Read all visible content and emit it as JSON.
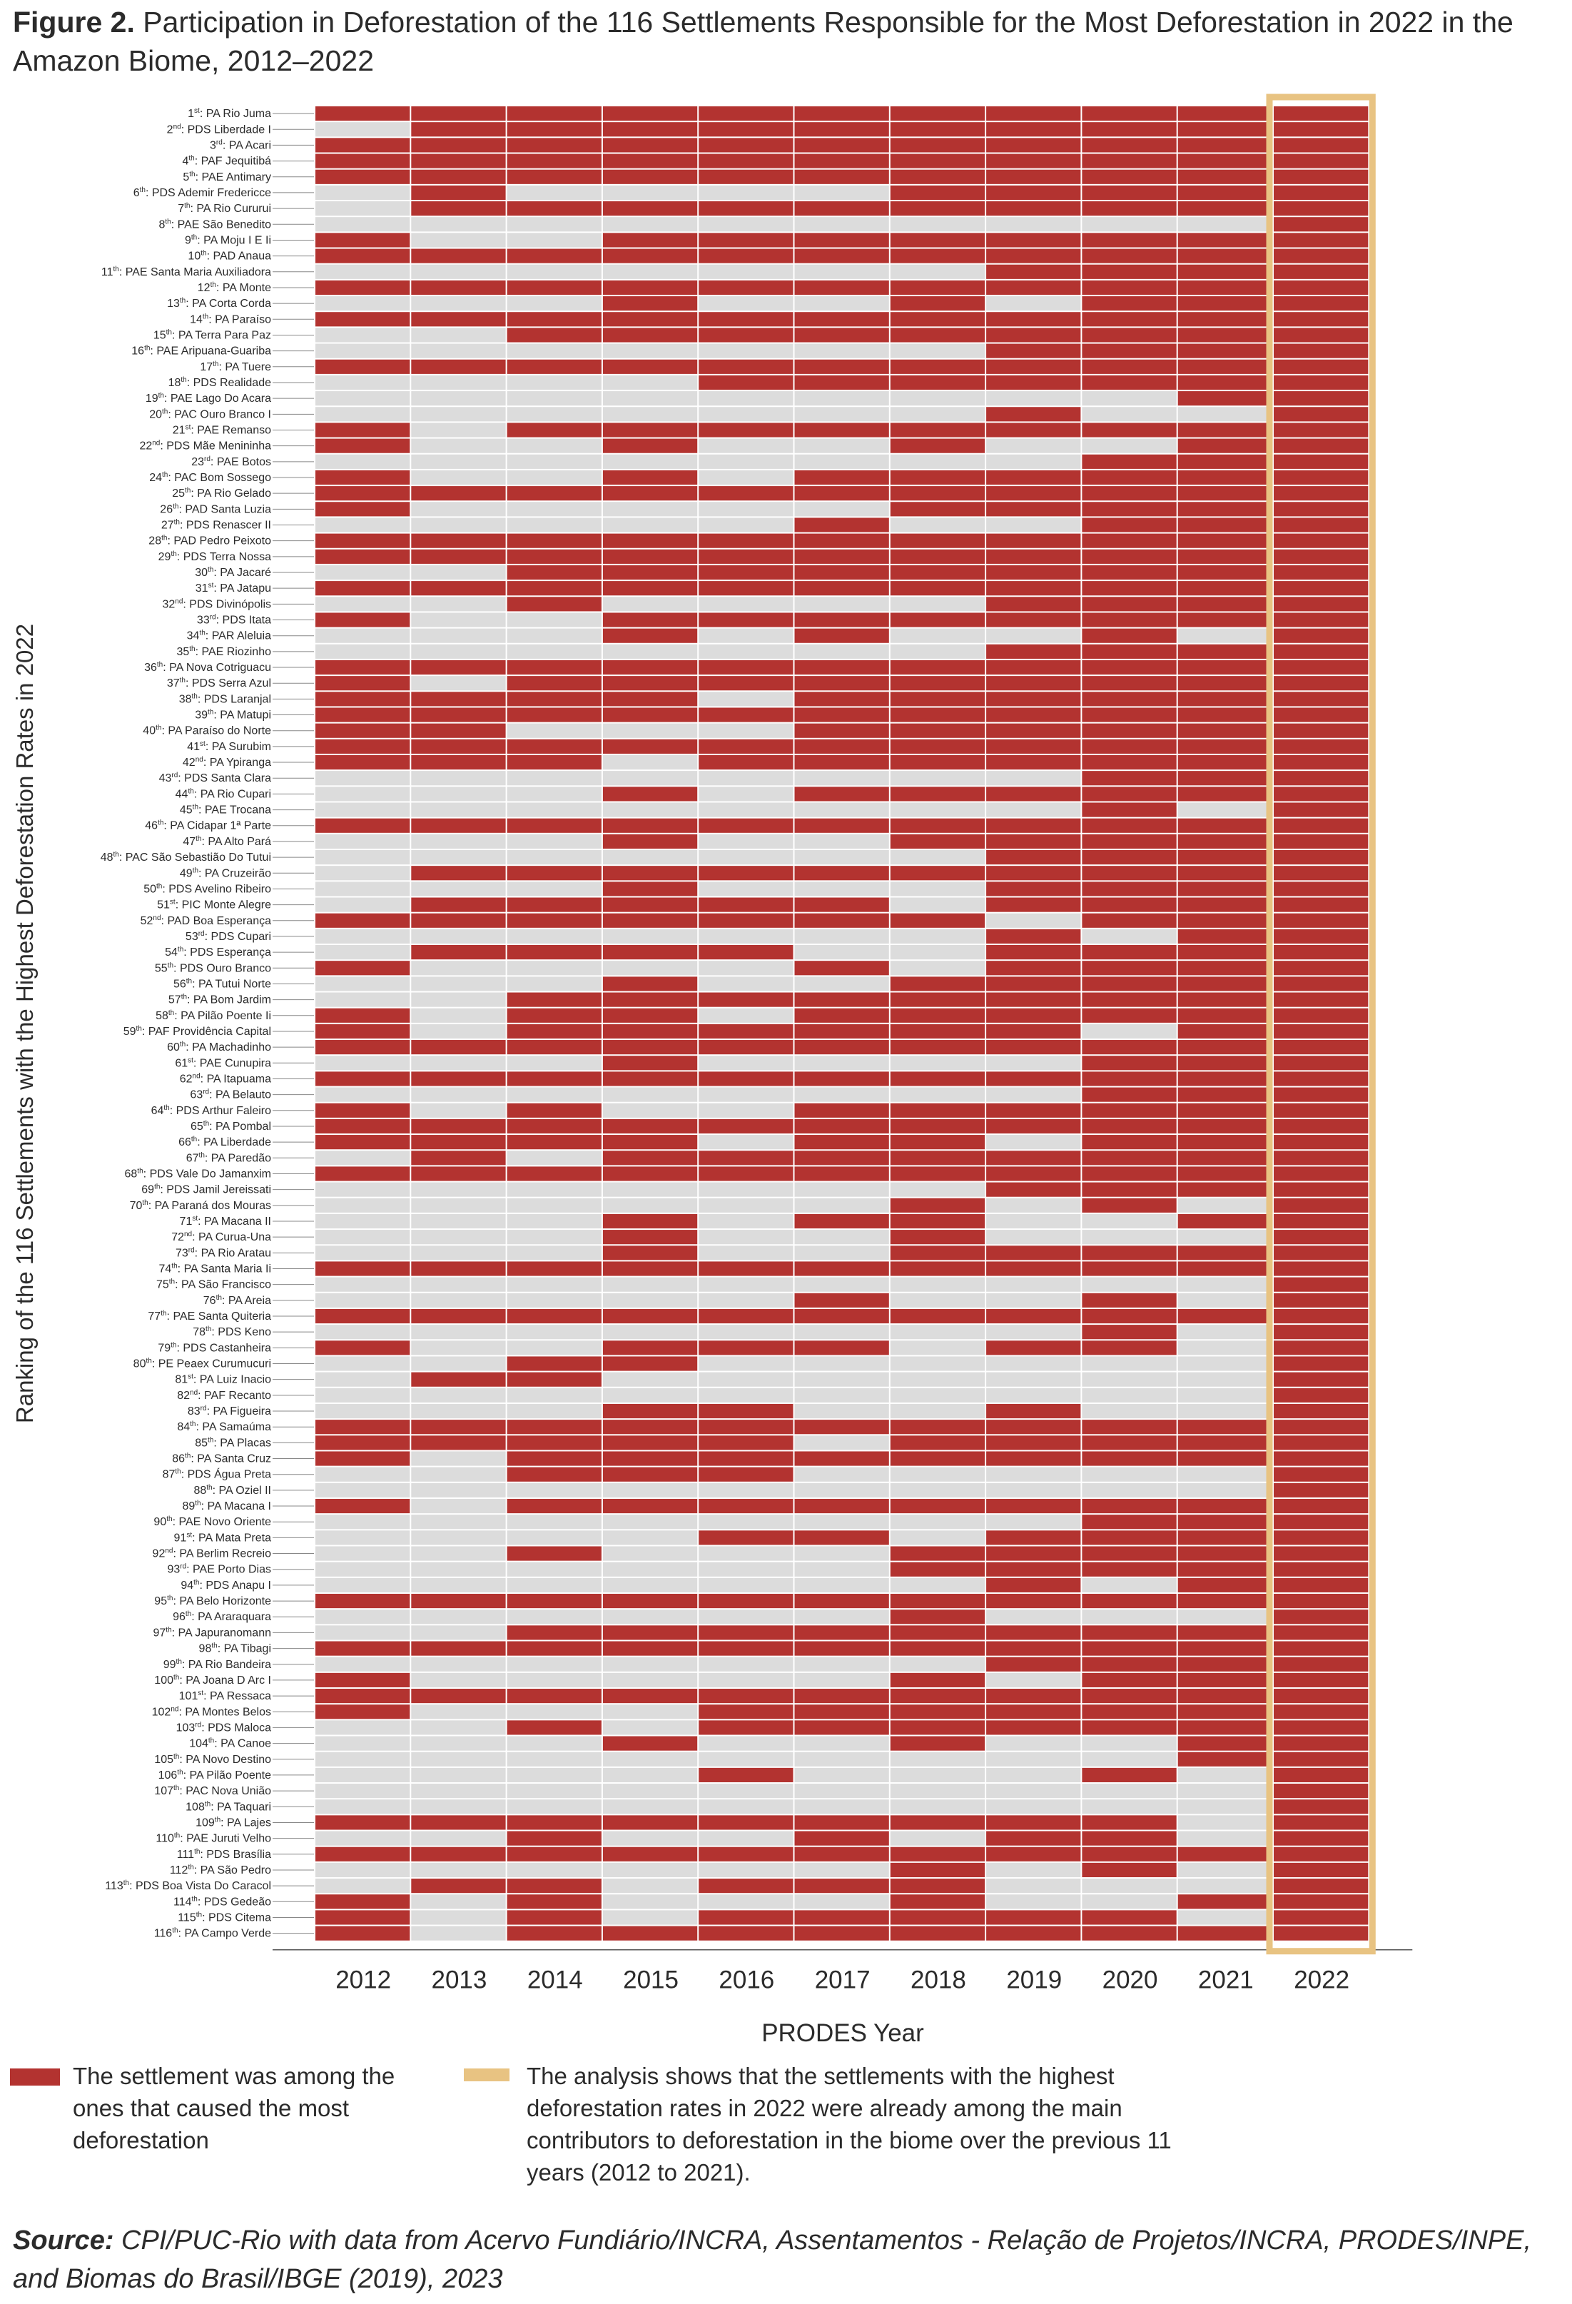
{
  "figure": {
    "title_bold": "Figure 2.",
    "title_text": "Participation in Deforestation of the 116 Settlements Responsible for the Most Deforestation in 2022 in the Amazon Biome, 2012–2022"
  },
  "legend": {
    "red_text": "The settlement was among the ones that caused the most deforestation",
    "highlight_text": "The analysis shows that the settlements with the highest deforestation rates in 2022 were already among the main contributors to deforestation in the biome over the previous 11 years (2012 to 2021)."
  },
  "source": {
    "label": "Source:",
    "text": "CPI/PUC-Rio with data from Acervo Fundiário/INCRA, Assentamentos - Relação de Projetos/INCRA, PRODES/INPE, and Biomas do Brasil/IBGE (2019), 2023"
  },
  "colors": {
    "red": "#b33330",
    "gray": "#dcdcdc",
    "highlight": "#e8c382",
    "text": "#2b2b2b"
  },
  "chart_data": {
    "type": "heatmap",
    "xlabel": "PRODES Year",
    "ylabel": "Ranking of the 116 Settlements with the Highest Deforestation Rates in 2022",
    "x": [
      "2012",
      "2013",
      "2014",
      "2015",
      "2016",
      "2017",
      "2018",
      "2019",
      "2020",
      "2021",
      "2022"
    ],
    "highlighted_year": "2022",
    "rows": [
      {
        "rank": "1",
        "suffix": "st",
        "name": "PA Rio Juma",
        "cells": "11111111111"
      },
      {
        "rank": "2",
        "suffix": "nd",
        "name": "PDS Liberdade I",
        "cells": "01111111111"
      },
      {
        "rank": "3",
        "suffix": "rd",
        "name": "PA Acari",
        "cells": "11111111111"
      },
      {
        "rank": "4",
        "suffix": "th",
        "name": "PAF Jequitibá",
        "cells": "11111111111"
      },
      {
        "rank": "5",
        "suffix": "th",
        "name": "PAE Antimary",
        "cells": "11111111111"
      },
      {
        "rank": "6",
        "suffix": "th",
        "name": "PDS Ademir Fredericce",
        "cells": "01000011111"
      },
      {
        "rank": "7",
        "suffix": "th",
        "name": "PA Rio Cururui",
        "cells": "01111111111"
      },
      {
        "rank": "8",
        "suffix": "th",
        "name": "PAE São Benedito",
        "cells": "00000000001"
      },
      {
        "rank": "9",
        "suffix": "th",
        "name": "PA Moju I E Ii",
        "cells": "10011111111"
      },
      {
        "rank": "10",
        "suffix": "th",
        "name": "PAD Anaua",
        "cells": "11111111111"
      },
      {
        "rank": "11",
        "suffix": "th",
        "name": "PAE Santa Maria Auxiliadora",
        "cells": "00000001111"
      },
      {
        "rank": "12",
        "suffix": "th",
        "name": "PA Monte",
        "cells": "11111111111"
      },
      {
        "rank": "13",
        "suffix": "th",
        "name": "PA Corta Corda",
        "cells": "00010010111"
      },
      {
        "rank": "14",
        "suffix": "th",
        "name": "PA Paraíso",
        "cells": "11111111111"
      },
      {
        "rank": "15",
        "suffix": "th",
        "name": "PA Terra Para Paz",
        "cells": "00111111111"
      },
      {
        "rank": "16",
        "suffix": "th",
        "name": "PAE Aripuana-Guariba",
        "cells": "00000001111"
      },
      {
        "rank": "17",
        "suffix": "th",
        "name": "PA Tuere",
        "cells": "11111111111"
      },
      {
        "rank": "18",
        "suffix": "th",
        "name": "PDS Realidade",
        "cells": "00001111111"
      },
      {
        "rank": "19",
        "suffix": "th",
        "name": "PAE Lago Do Acara",
        "cells": "00000000011"
      },
      {
        "rank": "20",
        "suffix": "th",
        "name": "PAC Ouro Branco I",
        "cells": "00000001001"
      },
      {
        "rank": "21",
        "suffix": "st",
        "name": "PAE Remanso",
        "cells": "10111111111"
      },
      {
        "rank": "22",
        "suffix": "nd",
        "name": "PDS Mãe Menininha",
        "cells": "10010010011"
      },
      {
        "rank": "23",
        "suffix": "rd",
        "name": "PAE Botos",
        "cells": "00000000111"
      },
      {
        "rank": "24",
        "suffix": "th",
        "name": "PAC Bom Sossego",
        "cells": "10010111111"
      },
      {
        "rank": "25",
        "suffix": "th",
        "name": "PA Rio Gelado",
        "cells": "11111111111"
      },
      {
        "rank": "26",
        "suffix": "th",
        "name": "PAD Santa Luzia",
        "cells": "10000011111"
      },
      {
        "rank": "27",
        "suffix": "th",
        "name": "PDS Renascer II",
        "cells": "00000100111"
      },
      {
        "rank": "28",
        "suffix": "th",
        "name": "PAD Pedro Peixoto",
        "cells": "11111111111"
      },
      {
        "rank": "29",
        "suffix": "th",
        "name": "PDS Terra Nossa",
        "cells": "11111111111"
      },
      {
        "rank": "30",
        "suffix": "th",
        "name": "PA Jacaré",
        "cells": "00111111111"
      },
      {
        "rank": "31",
        "suffix": "st",
        "name": "PA Jatapu",
        "cells": "11111111111"
      },
      {
        "rank": "32",
        "suffix": "nd",
        "name": "PDS Divinópolis",
        "cells": "00100001111"
      },
      {
        "rank": "33",
        "suffix": "rd",
        "name": "PDS Itata",
        "cells": "10011111111"
      },
      {
        "rank": "34",
        "suffix": "th",
        "name": "PAR Aleluia",
        "cells": "00010100101"
      },
      {
        "rank": "35",
        "suffix": "th",
        "name": "PAE Riozinho",
        "cells": "00000001111"
      },
      {
        "rank": "36",
        "suffix": "th",
        "name": "PA Nova Cotriguacu",
        "cells": "11111111111"
      },
      {
        "rank": "37",
        "suffix": "th",
        "name": "PDS Serra Azul",
        "cells": "10111111111"
      },
      {
        "rank": "38",
        "suffix": "th",
        "name": "PDS Laranjal",
        "cells": "11110111111"
      },
      {
        "rank": "39",
        "suffix": "th",
        "name": "PA Matupi",
        "cells": "11111111111"
      },
      {
        "rank": "40",
        "suffix": "th",
        "name": "PA Paraíso do Norte",
        "cells": "11000111111"
      },
      {
        "rank": "41",
        "suffix": "st",
        "name": "PA Surubim",
        "cells": "11111111111"
      },
      {
        "rank": "42",
        "suffix": "nd",
        "name": "PA Ypiranga",
        "cells": "11101111111"
      },
      {
        "rank": "43",
        "suffix": "rd",
        "name": "PDS Santa Clara",
        "cells": "00000000111"
      },
      {
        "rank": "44",
        "suffix": "th",
        "name": "PA Rio Cupari",
        "cells": "00010111111"
      },
      {
        "rank": "45",
        "suffix": "th",
        "name": "PAE Trocana",
        "cells": "00000000101"
      },
      {
        "rank": "46",
        "suffix": "th",
        "name": "PA Cidapar 1ª Parte",
        "cells": "11111111111"
      },
      {
        "rank": "47",
        "suffix": "th",
        "name": "PA Alto Pará",
        "cells": "00010011111"
      },
      {
        "rank": "48",
        "suffix": "th",
        "name": "PAC São Sebastião Do Tutui",
        "cells": "00000001111"
      },
      {
        "rank": "49",
        "suffix": "th",
        "name": "PA Cruzeirão",
        "cells": "01111111111"
      },
      {
        "rank": "50",
        "suffix": "th",
        "name": "PDS Avelino Ribeiro",
        "cells": "00010001111"
      },
      {
        "rank": "51",
        "suffix": "st",
        "name": "PIC Monte Alegre",
        "cells": "01111101111"
      },
      {
        "rank": "52",
        "suffix": "nd",
        "name": "PAD Boa Esperança",
        "cells": "11111110111"
      },
      {
        "rank": "53",
        "suffix": "rd",
        "name": "PDS Cupari",
        "cells": "00000001011"
      },
      {
        "rank": "54",
        "suffix": "th",
        "name": "PDS Esperança",
        "cells": "01111001111"
      },
      {
        "rank": "55",
        "suffix": "th",
        "name": "PDS Ouro Branco",
        "cells": "10000101111"
      },
      {
        "rank": "56",
        "suffix": "th",
        "name": "PA Tutui Norte",
        "cells": "00010011111"
      },
      {
        "rank": "57",
        "suffix": "th",
        "name": "PA Bom Jardim",
        "cells": "00111111111"
      },
      {
        "rank": "58",
        "suffix": "th",
        "name": "PA Pilão Poente Ii",
        "cells": "10110111111"
      },
      {
        "rank": "59",
        "suffix": "th",
        "name": "PAF Providência Capital",
        "cells": "10111111011"
      },
      {
        "rank": "60",
        "suffix": "th",
        "name": "PA Machadinho",
        "cells": "11111111111"
      },
      {
        "rank": "61",
        "suffix": "st",
        "name": "PAE Cunupira",
        "cells": "00010000111"
      },
      {
        "rank": "62",
        "suffix": "nd",
        "name": "PA Itapuama",
        "cells": "11111111111"
      },
      {
        "rank": "63",
        "suffix": "rd",
        "name": "PA Belauto",
        "cells": "00000000111"
      },
      {
        "rank": "64",
        "suffix": "th",
        "name": "PDS Arthur Faleiro",
        "cells": "10100111111"
      },
      {
        "rank": "65",
        "suffix": "th",
        "name": "PA Pombal",
        "cells": "11111111111"
      },
      {
        "rank": "66",
        "suffix": "th",
        "name": "PA Liberdade",
        "cells": "11110110111"
      },
      {
        "rank": "67",
        "suffix": "th",
        "name": "PA Paredão",
        "cells": "01011111111"
      },
      {
        "rank": "68",
        "suffix": "th",
        "name": "PDS Vale Do Jamanxim",
        "cells": "11111111111"
      },
      {
        "rank": "69",
        "suffix": "th",
        "name": "PDS Jamil Jereissati",
        "cells": "00000001111"
      },
      {
        "rank": "70",
        "suffix": "th",
        "name": "PA Paraná dos Mouras",
        "cells": "00000010101"
      },
      {
        "rank": "71",
        "suffix": "st",
        "name": "PA Macana II",
        "cells": "00010110011"
      },
      {
        "rank": "72",
        "suffix": "nd",
        "name": "PA Curua-Una",
        "cells": "00010010001"
      },
      {
        "rank": "73",
        "suffix": "rd",
        "name": "PA Rio Aratau",
        "cells": "00010011111"
      },
      {
        "rank": "74",
        "suffix": "th",
        "name": "PA Santa Maria Ii",
        "cells": "11111111111"
      },
      {
        "rank": "75",
        "suffix": "th",
        "name": "PA São Francisco",
        "cells": "00000000001"
      },
      {
        "rank": "76",
        "suffix": "th",
        "name": "PA Areia",
        "cells": "00000100101"
      },
      {
        "rank": "77",
        "suffix": "th",
        "name": "PAE Santa Quiteria",
        "cells": "11111111111"
      },
      {
        "rank": "78",
        "suffix": "th",
        "name": "PDS Keno",
        "cells": "00000000101"
      },
      {
        "rank": "79",
        "suffix": "th",
        "name": "PDS Castanheira",
        "cells": "10011101101"
      },
      {
        "rank": "80",
        "suffix": "th",
        "name": "PE Peaex Curumucuri",
        "cells": "00110000001"
      },
      {
        "rank": "81",
        "suffix": "st",
        "name": "PA Luiz Inacio",
        "cells": "01100000001"
      },
      {
        "rank": "82",
        "suffix": "nd",
        "name": "PAF Recanto",
        "cells": "00000000001"
      },
      {
        "rank": "83",
        "suffix": "rd",
        "name": "PA Figueira",
        "cells": "00011001001"
      },
      {
        "rank": "84",
        "suffix": "th",
        "name": "PA Samaúma",
        "cells": "11111111111"
      },
      {
        "rank": "85",
        "suffix": "th",
        "name": "PA Placas",
        "cells": "11111011111"
      },
      {
        "rank": "86",
        "suffix": "th",
        "name": "PA Santa Cruz",
        "cells": "10111111111"
      },
      {
        "rank": "87",
        "suffix": "th",
        "name": "PDS Água Preta",
        "cells": "00111000001"
      },
      {
        "rank": "88",
        "suffix": "th",
        "name": "PA Oziel II",
        "cells": "00000000001"
      },
      {
        "rank": "89",
        "suffix": "th",
        "name": "PA Macana I",
        "cells": "10111111111"
      },
      {
        "rank": "90",
        "suffix": "th",
        "name": "PAE Novo Oriente",
        "cells": "00000000111"
      },
      {
        "rank": "91",
        "suffix": "st",
        "name": "PA Mata Preta",
        "cells": "00001101111"
      },
      {
        "rank": "92",
        "suffix": "nd",
        "name": "PA Berlim Recreio",
        "cells": "00100011111"
      },
      {
        "rank": "93",
        "suffix": "rd",
        "name": "PAE Porto Dias",
        "cells": "00000011111"
      },
      {
        "rank": "94",
        "suffix": "th",
        "name": "PDS Anapu I",
        "cells": "00000001011"
      },
      {
        "rank": "95",
        "suffix": "th",
        "name": "PA Belo Horizonte",
        "cells": "11111111111"
      },
      {
        "rank": "96",
        "suffix": "th",
        "name": "PA Araraquara",
        "cells": "00000010001"
      },
      {
        "rank": "97",
        "suffix": "th",
        "name": "PA Japuranomann",
        "cells": "00111111111"
      },
      {
        "rank": "98",
        "suffix": "th",
        "name": "PA Tibagi",
        "cells": "11111111111"
      },
      {
        "rank": "99",
        "suffix": "th",
        "name": "PA Rio Bandeira",
        "cells": "00000001111"
      },
      {
        "rank": "100",
        "suffix": "th",
        "name": "PA Joana D Arc I",
        "cells": "10000010111"
      },
      {
        "rank": "101",
        "suffix": "st",
        "name": "PA Ressaca",
        "cells": "11111111111"
      },
      {
        "rank": "102",
        "suffix": "nd",
        "name": "PA Montes Belos",
        "cells": "10001111111"
      },
      {
        "rank": "103",
        "suffix": "rd",
        "name": "PDS Maloca",
        "cells": "00101111111"
      },
      {
        "rank": "104",
        "suffix": "th",
        "name": "PA Canoe",
        "cells": "00010010011"
      },
      {
        "rank": "105",
        "suffix": "th",
        "name": "PA Novo Destino",
        "cells": "00000000011"
      },
      {
        "rank": "106",
        "suffix": "th",
        "name": "PA Pilão Poente",
        "cells": "00001000101"
      },
      {
        "rank": "107",
        "suffix": "th",
        "name": "PAC Nova União",
        "cells": "00000000001"
      },
      {
        "rank": "108",
        "suffix": "th",
        "name": "PA Taquari",
        "cells": "00000000001"
      },
      {
        "rank": "109",
        "suffix": "th",
        "name": "PA Lajes",
        "cells": "11111111101"
      },
      {
        "rank": "110",
        "suffix": "th",
        "name": "PAE Juruti Velho",
        "cells": "00100101101"
      },
      {
        "rank": "111",
        "suffix": "th",
        "name": "PDS Brasília",
        "cells": "11111111111"
      },
      {
        "rank": "112",
        "suffix": "th",
        "name": "PA São Pedro",
        "cells": "00000010101"
      },
      {
        "rank": "113",
        "suffix": "th",
        "name": "PDS Boa Vista Do Caracol",
        "cells": "01101110001"
      },
      {
        "rank": "114",
        "suffix": "th",
        "name": "PDS Gedeão",
        "cells": "10100010011"
      },
      {
        "rank": "115",
        "suffix": "th",
        "name": "PDS Citema",
        "cells": "10101111101"
      },
      {
        "rank": "116",
        "suffix": "th",
        "name": "PA Campo Verde",
        "cells": "10111111111"
      }
    ]
  }
}
